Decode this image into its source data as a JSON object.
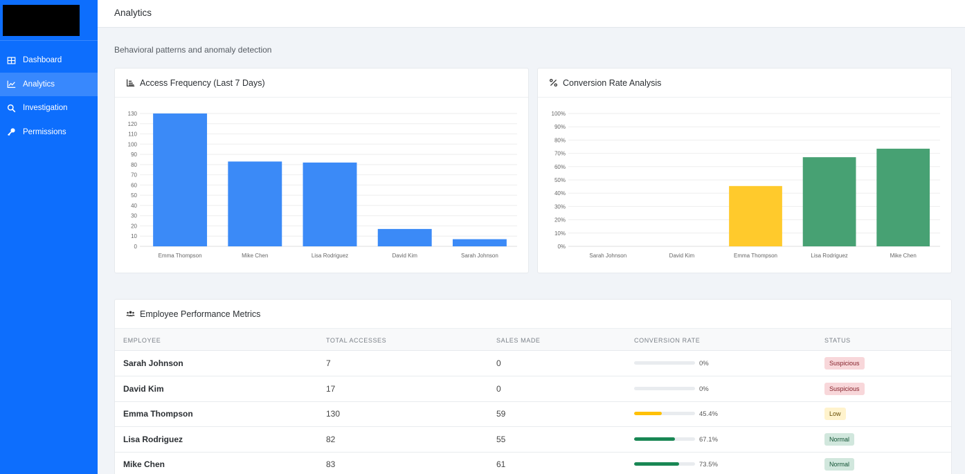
{
  "nav": {
    "items": [
      {
        "label": "Dashboard",
        "icon": "grid-icon"
      },
      {
        "label": "Analytics",
        "icon": "chart-line-icon"
      },
      {
        "label": "Investigation",
        "icon": "search-icon"
      },
      {
        "label": "Permissions",
        "icon": "key-icon"
      }
    ],
    "active": "Analytics"
  },
  "header": {
    "title": "Analytics"
  },
  "subtitle": "Behavioral patterns and anomaly detection",
  "colors": {
    "primary": "#0d6efd",
    "bar_blue": "#3b8af7",
    "bar_yellow": "#ffca2c",
    "bar_green": "#47a173",
    "progress_green": "#198754"
  },
  "chart_data": [
    {
      "type": "bar",
      "title": "Access Frequency (Last 7 Days)",
      "categories": [
        "Emma Thompson",
        "Mike Chen",
        "Lisa Rodriguez",
        "David Kim",
        "Sarah Johnson"
      ],
      "values": [
        130,
        83,
        82,
        17,
        7
      ],
      "ylim": [
        0,
        130
      ],
      "yticks": [
        0,
        10,
        20,
        30,
        40,
        50,
        60,
        70,
        80,
        90,
        100,
        110,
        120,
        130
      ],
      "grid": true
    },
    {
      "type": "bar",
      "title": "Conversion Rate Analysis",
      "categories": [
        "Sarah Johnson",
        "David Kim",
        "Emma Thompson",
        "Lisa Rodriguez",
        "Mike Chen"
      ],
      "values": [
        0,
        0,
        45.4,
        67.1,
        73.5
      ],
      "bar_colors": [
        "#47a173",
        "#47a173",
        "#ffca2c",
        "#47a173",
        "#47a173"
      ],
      "ylim": [
        0,
        100
      ],
      "yticks": [
        "0%",
        "10%",
        "20%",
        "30%",
        "40%",
        "50%",
        "60%",
        "70%",
        "80%",
        "90%",
        "100%"
      ],
      "grid": true
    }
  ],
  "table": {
    "title": "Employee Performance Metrics",
    "columns": [
      "EMPLOYEE",
      "TOTAL ACCESSES",
      "SALES MADE",
      "CONVERSION RATE",
      "STATUS"
    ],
    "rows": [
      {
        "name": "Sarah Johnson",
        "accesses": "7",
        "sales": "0",
        "rate": "0%",
        "rate_value": 0,
        "status": "Suspicious",
        "level": "danger"
      },
      {
        "name": "David Kim",
        "accesses": "17",
        "sales": "0",
        "rate": "0%",
        "rate_value": 0,
        "status": "Suspicious",
        "level": "danger"
      },
      {
        "name": "Emma Thompson",
        "accesses": "130",
        "sales": "59",
        "rate": "45.4%",
        "rate_value": 45.4,
        "status": "Low",
        "level": "warning"
      },
      {
        "name": "Lisa Rodriguez",
        "accesses": "82",
        "sales": "55",
        "rate": "67.1%",
        "rate_value": 67.1,
        "status": "Normal",
        "level": "success"
      },
      {
        "name": "Mike Chen",
        "accesses": "83",
        "sales": "61",
        "rate": "73.5%",
        "rate_value": 73.5,
        "status": "Normal",
        "level": "success"
      }
    ]
  }
}
